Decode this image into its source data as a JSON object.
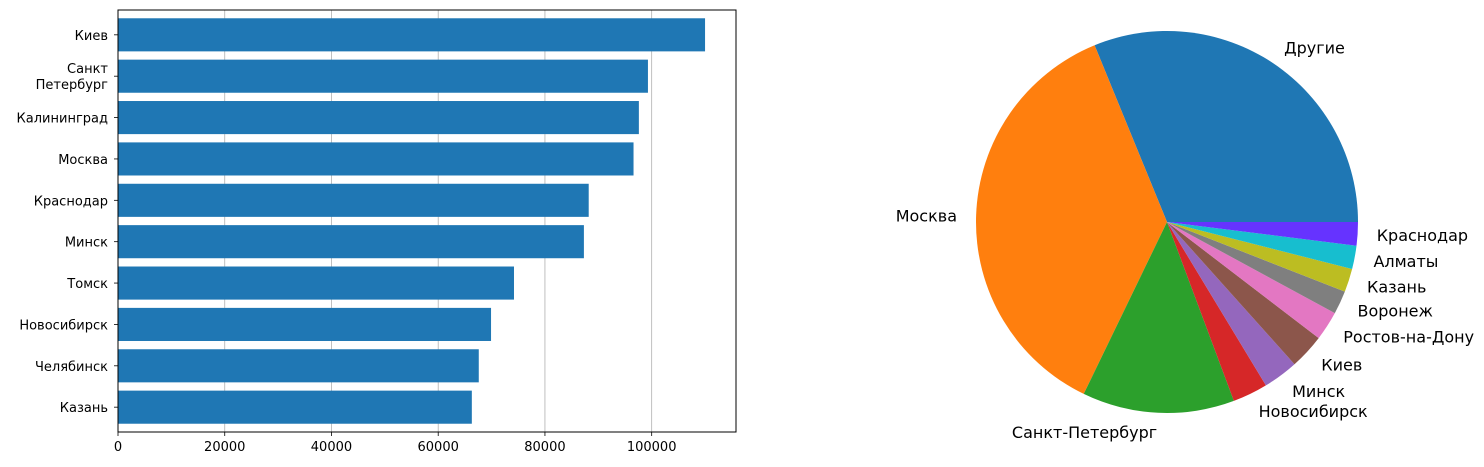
{
  "chart_data": [
    {
      "type": "bar",
      "orientation": "horizontal",
      "categories": [
        "Киев",
        "Санкт\nПетербург",
        "Калининград",
        "Москва",
        "Краснодар",
        "Минск",
        "Томск",
        "Новосибирск",
        "Челябинск",
        "Казань"
      ],
      "values": [
        110000,
        99300,
        97600,
        96600,
        88200,
        87300,
        74200,
        69900,
        67600,
        66300
      ],
      "xlim": [
        0,
        115800
      ],
      "xticks": [
        0,
        20000,
        40000,
        60000,
        80000,
        100000
      ],
      "xtick_labels": [
        "0",
        "20000",
        "40000",
        "60000",
        "80000",
        "100000"
      ],
      "grid": "x",
      "color": "#1f77b4"
    },
    {
      "type": "pie",
      "labels": [
        "Другие",
        "Москва",
        "Санкт-Петербург",
        "Новосибирск",
        "Минск",
        "Киев",
        "Ростов-на-Дону",
        "Воронеж",
        "Казань",
        "Алматы",
        "Краснодар"
      ],
      "values": [
        31.5,
        37.0,
        13.0,
        3.0,
        3.0,
        3.0,
        2.5,
        2.0,
        2.0,
        2.0,
        2.0
      ],
      "colors": [
        "#1f77b4",
        "#ff7f0e",
        "#2ca02c",
        "#d62728",
        "#9467bd",
        "#8c564b",
        "#e377c2",
        "#7f7f7f",
        "#bcbd22",
        "#17becf",
        "#6633ff"
      ]
    }
  ]
}
